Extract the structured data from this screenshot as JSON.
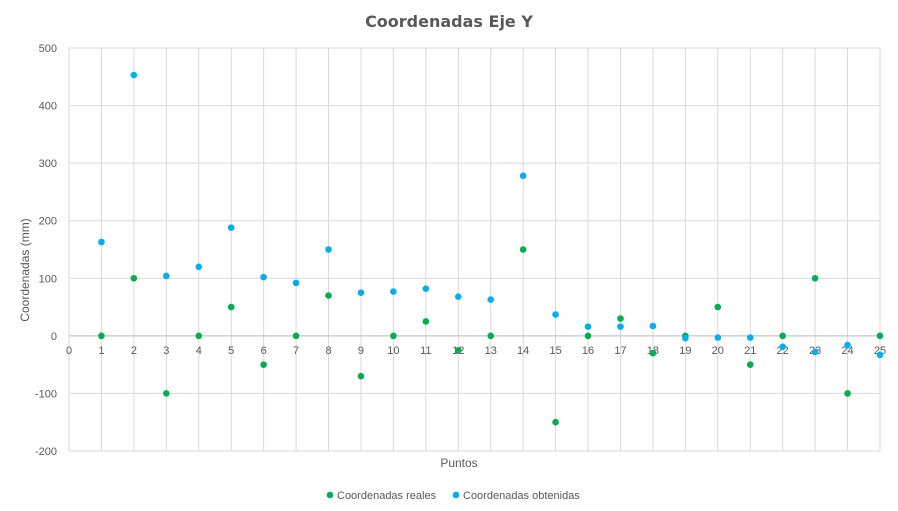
{
  "chart_data": {
    "type": "scatter",
    "title": "Coordenadas Eje Y",
    "xlabel": "Puntos",
    "ylabel": "Coordenadas (mm)",
    "xlim": [
      0,
      25
    ],
    "ylim": [
      -200,
      500
    ],
    "x_ticks": [
      0,
      1,
      2,
      3,
      4,
      5,
      6,
      7,
      8,
      9,
      10,
      11,
      12,
      13,
      14,
      15,
      16,
      17,
      18,
      19,
      20,
      21,
      22,
      23,
      24,
      25
    ],
    "y_ticks": [
      -200,
      -100,
      0,
      100,
      200,
      300,
      400,
      500
    ],
    "grid": true,
    "legend_position": "bottom",
    "series": [
      {
        "name": "Coordenadas reales",
        "color": "#00B050",
        "x": [
          1,
          2,
          3,
          4,
          5,
          6,
          7,
          8,
          9,
          10,
          11,
          12,
          13,
          14,
          15,
          16,
          17,
          18,
          19,
          20,
          21,
          22,
          23,
          24,
          25
        ],
        "y": [
          0,
          100,
          -100,
          0,
          50,
          -50,
          0,
          70,
          -70,
          0,
          25,
          -25,
          0,
          150,
          -150,
          0,
          30,
          -30,
          0,
          50,
          -50,
          0,
          100,
          -100,
          0
        ]
      },
      {
        "name": "Coordenadas obtenidas",
        "color": "#00B0F0",
        "x": [
          1,
          2,
          3,
          4,
          5,
          6,
          7,
          8,
          9,
          10,
          11,
          12,
          13,
          14,
          15,
          16,
          17,
          18,
          19,
          20,
          21,
          22,
          23,
          24,
          25
        ],
        "y": [
          163,
          453,
          104,
          120,
          188,
          102,
          92,
          150,
          75,
          77,
          82,
          68,
          63,
          278,
          37,
          16,
          16,
          17,
          -4,
          -3,
          -3,
          -19,
          -28,
          -16,
          -33
        ]
      }
    ]
  }
}
